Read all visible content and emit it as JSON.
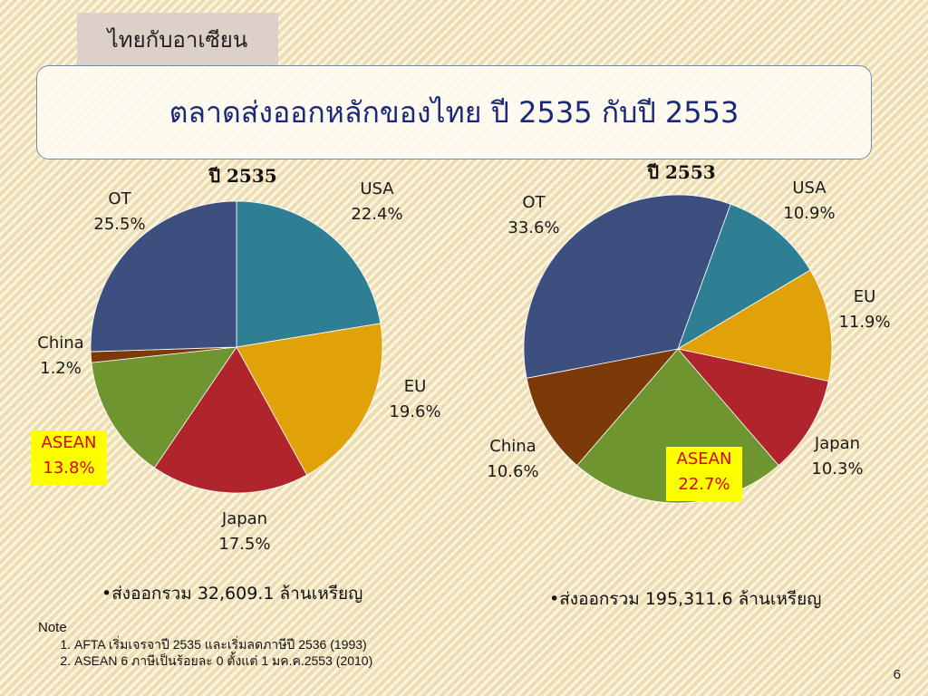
{
  "slide": {
    "tab_label": "ไทยกับอาเซียน",
    "title": "ตลาดส่งออกหลักของไทย ปี 2535 กับปี 2553",
    "page_number": "6"
  },
  "chart_data": [
    {
      "type": "pie",
      "title": "ปี 2535",
      "labels": [
        "USA",
        "EU",
        "Japan",
        "ASEAN",
        "China",
        "OT"
      ],
      "values": [
        22.4,
        19.6,
        17.5,
        13.8,
        1.2,
        25.5
      ],
      "value_labels": [
        "22.4%",
        "19.6%",
        "17.5%",
        "13.8%",
        "1.2%",
        "25.5%"
      ],
      "colors": [
        "#2e7f94",
        "#e0a109",
        "#b0242c",
        "#6f9530",
        "#7b3a07",
        "#3d4f7e"
      ],
      "highlight": "ASEAN",
      "total_text": "•ส่งออกรวม 32,609.1 ล้านเหรียญ"
    },
    {
      "type": "pie",
      "title": "ปี 2553",
      "labels": [
        "USA",
        "EU",
        "Japan",
        "ASEAN",
        "China",
        "OT"
      ],
      "values": [
        10.9,
        11.9,
        10.3,
        22.7,
        10.6,
        33.6
      ],
      "value_labels": [
        "10.9%",
        "11.9%",
        "10.3%",
        "22.7%",
        "10.6%",
        "33.6%"
      ],
      "colors": [
        "#2e7f94",
        "#e0a109",
        "#b0242c",
        "#6f9530",
        "#7b3a07",
        "#3d4f7e"
      ],
      "highlight": "ASEAN",
      "total_text": "•ส่งออกรวม 195,311.6 ล้านเหรียญ"
    }
  ],
  "note": {
    "heading": "Note",
    "items": [
      "AFTA เริ่มเจรจาปี 2535 และเริ่มลดภาษีปี 2536 (1993)",
      "ASEAN 6 ภาษีเป็นร้อยละ 0 ตั้งแต่ 1 มค.ค.2553 (2010)"
    ]
  }
}
